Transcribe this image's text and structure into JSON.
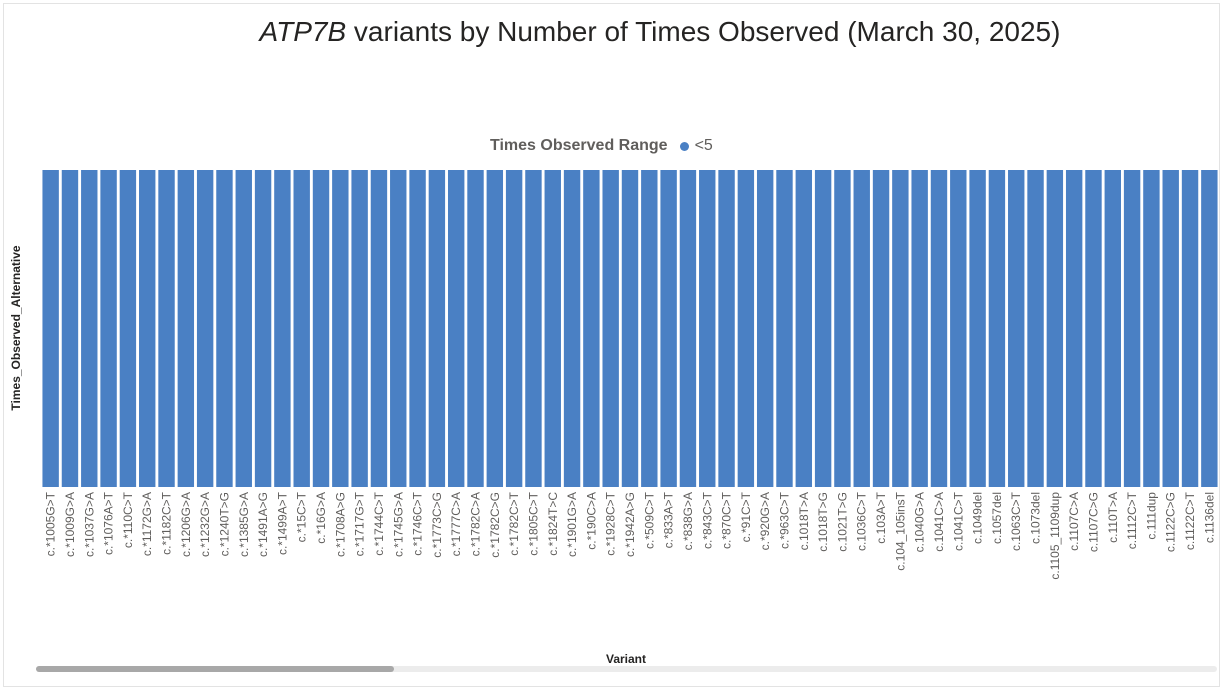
{
  "chart_data": {
    "type": "bar",
    "title_italic": "ATP7B",
    "title_rest": " variants by Number of Times Observed (March 30, 2025)",
    "xlabel": "Variant",
    "ylabel": "Times_Observed_Alternative",
    "legend": {
      "title": "Times Observed Range",
      "entries": [
        {
          "label": "<5",
          "color": "#4a80c4"
        }
      ],
      "position": "top-center"
    },
    "categories": [
      "c.*1005G>T",
      "c.*1009G>A",
      "c.*1037G>A",
      "c.*1076A>T",
      "c.*110C>T",
      "c.*1172G>A",
      "c.*1182C>T",
      "c.*1206G>A",
      "c.*1232G>A",
      "c.*1240T>G",
      "c.*1385G>A",
      "c.*1491A>G",
      "c.*1499A>T",
      "c.*15C>T",
      "c.*16G>A",
      "c.*1708A>G",
      "c.*1717G>T",
      "c.*1744C>T",
      "c.*1745G>A",
      "c.*1746C>T",
      "c.*1773C>G",
      "c.*1777C>A",
      "c.*1782C>A",
      "c.*1782C>G",
      "c.*1782C>T",
      "c.*1805C>T",
      "c.*1824T>C",
      "c.*1901G>A",
      "c.*190C>A",
      "c.*1928C>T",
      "c.*1942A>G",
      "c.*509C>T",
      "c.*833A>T",
      "c.*838G>A",
      "c.*843C>T",
      "c.*870C>T",
      "c.*91C>T",
      "c.*920G>A",
      "c.*963C>T",
      "c.1018T>A",
      "c.1018T>G",
      "c.1021T>G",
      "c.1036C>T",
      "c.103A>T",
      "c.104_105insT",
      "c.1040G>A",
      "c.1041C>A",
      "c.1041C>T",
      "c.1049del",
      "c.1057del",
      "c.1063C>T",
      "c.1073del",
      "c.1105_1109dup",
      "c.1107C>A",
      "c.1107C>G",
      "c.110T>A",
      "c.1112C>T",
      "c.111dup",
      "c.1122C>G",
      "c.1122C>T",
      "c.1136del"
    ],
    "values": [
      1,
      1,
      1,
      1,
      1,
      1,
      1,
      1,
      1,
      1,
      1,
      1,
      1,
      1,
      1,
      1,
      1,
      1,
      1,
      1,
      1,
      1,
      1,
      1,
      1,
      1,
      1,
      1,
      1,
      1,
      1,
      1,
      1,
      1,
      1,
      1,
      1,
      1,
      1,
      1,
      1,
      1,
      1,
      1,
      1,
      1,
      1,
      1,
      1,
      1,
      1,
      1,
      1,
      1,
      1,
      1,
      1,
      1,
      1,
      1,
      1
    ],
    "ylim": [
      0,
      1
    ],
    "bar_color": "#4a80c4",
    "grid": false
  }
}
